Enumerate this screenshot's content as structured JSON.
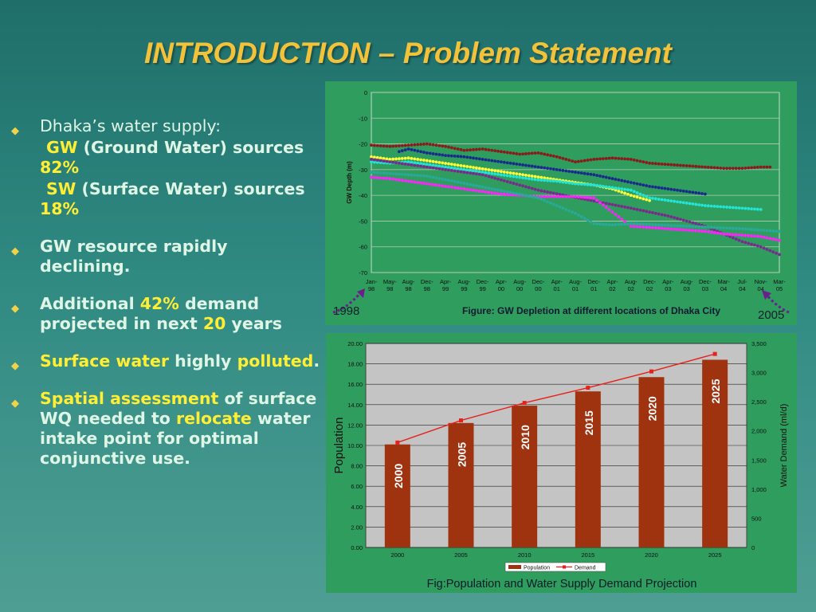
{
  "slide": {
    "title": "INTRODUCTION – Problem Statement"
  },
  "bullets": {
    "b1": {
      "text": "Dhaka’s water supply:"
    },
    "b1_gw": {
      "key": "GW",
      "rest": " (Ground Water) sources ",
      "pct": "82%"
    },
    "b1_sw": {
      "key": "SW",
      "rest": " (Surface Water) sources ",
      "pct": "18%"
    },
    "b2": {
      "text": "GW resource rapidly declining."
    },
    "b3": {
      "a": "Additional ",
      "pct": "42%",
      "b": " demand projected in next ",
      "n": "20",
      "c": " years"
    },
    "b4": {
      "a": "Surface water",
      "b": " highly ",
      "c": "polluted",
      "d": "."
    },
    "b5": {
      "a": "Spatial assessment",
      "b": " of surface WQ needed to ",
      "c": "relocate",
      "d": " water intake point for optimal conjunctive use."
    }
  },
  "annotations": {
    "start": "1998",
    "end": "2005"
  },
  "colors": {
    "title": "#f2c23a",
    "highlight": "#ffee33",
    "panel": "#2e9d5e",
    "bar": "#a0330f",
    "demand_line": "#e8201a"
  },
  "chart_data": [
    {
      "type": "scatter",
      "title": "Figure: GW Depletion at different locations of Dhaka City",
      "ylabel": "GW Depth (m)",
      "ylim": [
        -70,
        0
      ],
      "yticks": [
        "0",
        "-10",
        "-20",
        "-30",
        "-40",
        "-50",
        "-60",
        "-70"
      ],
      "x_ticks": [
        "Jan-98",
        "May-98",
        "Aug-98",
        "Dec-98",
        "Apr-99",
        "Aug-99",
        "Dec-99",
        "Apr-00",
        "Aug-00",
        "Dec-00",
        "Apr-01",
        "Aug-01",
        "Dec-01",
        "Apr-02",
        "Aug-02",
        "Dec-02",
        "Apr-03",
        "Aug-03",
        "Dec-03",
        "Mar-04",
        "Jul-04",
        "Nov-04",
        "Mar-05"
      ],
      "series": [
        {
          "color": "#8b1a1a",
          "points": [
            [
              0,
              -20.5
            ],
            [
              1,
              -21
            ],
            [
              2,
              -20.5
            ],
            [
              3,
              -20
            ],
            [
              4,
              -21
            ],
            [
              5,
              -22.5
            ],
            [
              6,
              -22
            ],
            [
              7,
              -23
            ],
            [
              8,
              -24
            ],
            [
              9,
              -23.5
            ],
            [
              10,
              -25
            ],
            [
              11,
              -27
            ],
            [
              12,
              -26
            ],
            [
              13,
              -25.5
            ],
            [
              14,
              -26
            ],
            [
              15,
              -27.5
            ],
            [
              16,
              -28
            ],
            [
              17,
              -28.5
            ],
            [
              18,
              -29
            ],
            [
              19,
              -29.5
            ],
            [
              20,
              -29.5
            ],
            [
              21,
              -29
            ],
            [
              21.5,
              -29
            ]
          ]
        },
        {
          "color": "#1a2a8c",
          "points": [
            [
              1.5,
              -23
            ],
            [
              2,
              -22
            ],
            [
              3,
              -23.5
            ],
            [
              4,
              -24.5
            ],
            [
              5,
              -25
            ],
            [
              6,
              -26
            ],
            [
              7,
              -27
            ],
            [
              8,
              -28
            ],
            [
              9,
              -29
            ],
            [
              10,
              -30
            ],
            [
              11,
              -31
            ],
            [
              12,
              -32
            ],
            [
              13,
              -33.5
            ],
            [
              14,
              -35
            ],
            [
              15,
              -36.5
            ],
            [
              16,
              -37.5
            ],
            [
              17,
              -38.5
            ],
            [
              18,
              -39.5
            ]
          ]
        },
        {
          "color": "#ffff33",
          "points": [
            [
              0,
              -25
            ],
            [
              1,
              -26
            ],
            [
              2,
              -25.5
            ],
            [
              3,
              -26.5
            ],
            [
              11,
              -35
            ],
            [
              12,
              -36
            ],
            [
              13,
              -37.5
            ],
            [
              14,
              -40
            ],
            [
              15,
              -42
            ]
          ]
        },
        {
          "color": "#22e5d8",
          "points": [
            [
              0,
              -27
            ],
            [
              1,
              -27.5
            ],
            [
              2,
              -27
            ],
            [
              3,
              -28
            ],
            [
              4,
              -29
            ],
            [
              5,
              -30
            ],
            [
              6,
              -31
            ],
            [
              7,
              -32
            ],
            [
              8,
              -33
            ],
            [
              9,
              -34
            ],
            [
              10,
              -34.5
            ],
            [
              11,
              -35.5
            ],
            [
              12,
              -36
            ],
            [
              13,
              -37
            ],
            [
              14,
              -38
            ],
            [
              15,
              -41
            ],
            [
              16,
              -42
            ],
            [
              17,
              -43
            ],
            [
              18,
              -44
            ],
            [
              19,
              -44.5
            ],
            [
              20,
              -45
            ],
            [
              21,
              -45.5
            ]
          ]
        },
        {
          "color": "#7a2a8c",
          "points": [
            [
              0,
              -26
            ],
            [
              1,
              -27
            ],
            [
              2,
              -28
            ],
            [
              3,
              -29
            ],
            [
              4,
              -30
            ],
            [
              5,
              -31
            ],
            [
              6,
              -32
            ],
            [
              7,
              -34
            ],
            [
              8,
              -36
            ],
            [
              9,
              -38
            ],
            [
              14,
              -45
            ],
            [
              15,
              -46.5
            ],
            [
              16,
              -48
            ],
            [
              17,
              -50
            ],
            [
              18,
              -52
            ],
            [
              19,
              -55
            ],
            [
              20,
              -58
            ],
            [
              21,
              -60
            ],
            [
              22,
              -63
            ]
          ]
        },
        {
          "color": "#ff22ff",
          "points": [
            [
              0,
              -33
            ],
            [
              1,
              -33.5
            ],
            [
              2,
              -34.5
            ],
            [
              3,
              -35.5
            ],
            [
              4,
              -36.5
            ],
            [
              5,
              -37.5
            ],
            [
              6,
              -38.5
            ],
            [
              7,
              -39.5
            ],
            [
              8,
              -40
            ],
            [
              9,
              -40.5
            ],
            [
              10,
              -40.5
            ],
            [
              11,
              -40.5
            ],
            [
              12,
              -41
            ],
            [
              14,
              -52
            ],
            [
              15,
              -52.5
            ],
            [
              16,
              -53
            ],
            [
              17,
              -53.5
            ],
            [
              18,
              -54
            ],
            [
              19,
              -55
            ],
            [
              20,
              -55.5
            ],
            [
              21,
              -56
            ],
            [
              22,
              -57.5
            ]
          ]
        },
        {
          "color": "#2aa89a",
          "points": [
            [
              0,
              -31
            ],
            [
              1,
              -31.5
            ],
            [
              2,
              -32
            ],
            [
              3,
              -32.5
            ],
            [
              9,
              -41
            ],
            [
              10,
              -44
            ],
            [
              11,
              -47
            ],
            [
              12,
              -51
            ],
            [
              13,
              -51.5
            ],
            [
              14,
              -51
            ],
            [
              20,
              -53
            ],
            [
              21,
              -53.5
            ],
            [
              22,
              -54
            ]
          ]
        }
      ]
    },
    {
      "type": "bar",
      "title": "Fig:Population and Water Supply Demand Projection",
      "categories": [
        "2000",
        "2005",
        "2010",
        "2015",
        "2020",
        "2025"
      ],
      "bar_labels": [
        "2000",
        "2005",
        "2010",
        "2015",
        "2020",
        "2025"
      ],
      "series": [
        {
          "name": "Population",
          "values": [
            10.1,
            12.2,
            13.9,
            15.3,
            16.7,
            18.4
          ],
          "color": "#a0330f"
        },
        {
          "name": "Demand",
          "values": [
            1800,
            2180,
            2480,
            2740,
            3020,
            3320
          ],
          "color": "#e8201a"
        }
      ],
      "ylabel": "Population",
      "y2label": "Water Demand (ml/d)",
      "ylim": [
        0,
        20
      ],
      "y2lim": [
        0,
        3500
      ],
      "yticks": [
        "0.00",
        "2.00",
        "4.00",
        "6.00",
        "8.00",
        "10.00",
        "12.00",
        "14.00",
        "16.00",
        "18.00",
        "20.00"
      ],
      "y2ticks": [
        "0",
        "500",
        "1,000",
        "1,500",
        "2,000",
        "2,500",
        "3,000",
        "3,500"
      ],
      "legend": [
        "Population",
        "Demand"
      ]
    }
  ]
}
